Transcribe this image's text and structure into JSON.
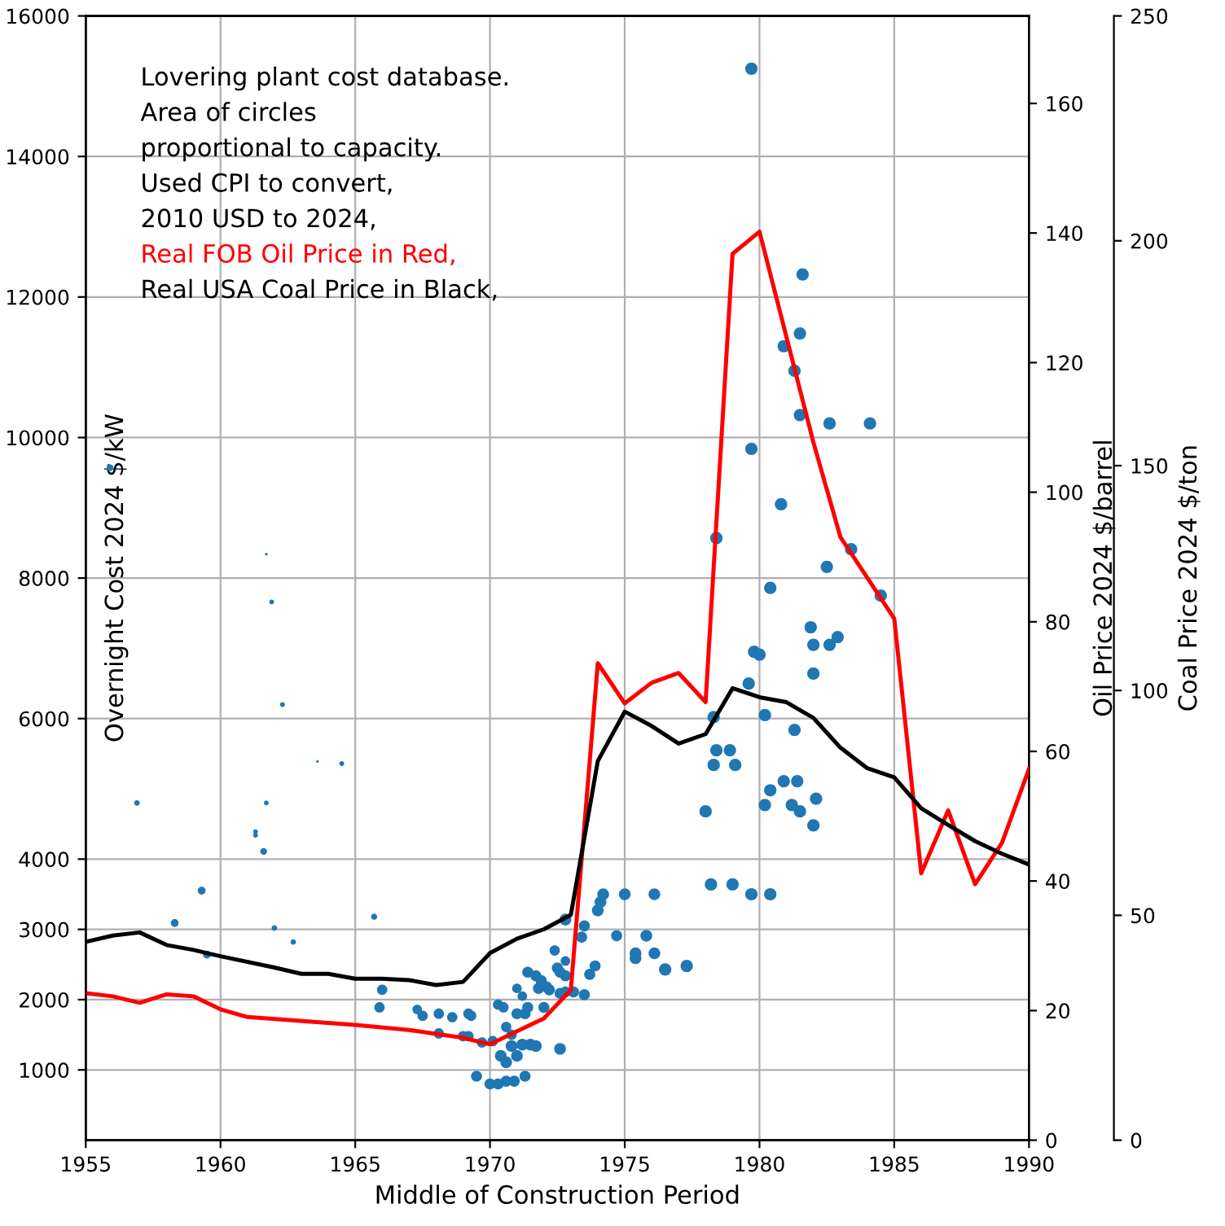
{
  "chart_data": {
    "type": "bubble",
    "relative": false,
    "xlabel": "Middle of Construction Period",
    "ylabel": "Overnight Cost 2024 $/kW",
    "y2label": "Oil Price 2024 $/barrel",
    "y3label": "Coal Price 2024 $/ton",
    "annotations": [
      "Lovering plant cost database.",
      "Area of circles",
      "proportional to capacity.",
      "Used CPI to convert,",
      "2010 USD to 2024,",
      "Real FOB Oil Price in Red,",
      "Real USA Coal Price in Black,"
    ],
    "xlim": [
      1955,
      1990
    ],
    "xticks": [
      1955,
      1960,
      1965,
      1970,
      1975,
      1980,
      1985,
      1990
    ],
    "ylim": [
      0,
      16000
    ],
    "yticks": [
      1000,
      2000,
      3000,
      4000,
      6000,
      8000,
      10000,
      12000,
      14000,
      16000
    ],
    "y2lim": [
      0,
      173.5
    ],
    "y2ticks": [
      0,
      20,
      40,
      60,
      80,
      100,
      120,
      140,
      160
    ],
    "y3lim": [
      0,
      250
    ],
    "y3ticks": [
      0,
      50,
      100,
      150,
      200,
      250
    ],
    "grid": true,
    "series": [
      {
        "color": "#1f77b4",
        "x": [
          1955.9,
          1956.9,
          1958.3,
          1959.3,
          1959.5,
          1961.7,
          1961.9,
          1962.3,
          1961.3,
          1961.3,
          1961.6,
          1961.7,
          1962.0,
          1962.7,
          1963.6,
          1964.5,
          1965.7,
          1966.0,
          1965.9,
          1967.3,
          1967.5,
          1968.1,
          1968.6,
          1969.2,
          1969.3,
          1968.1,
          1969.0,
          1969.2,
          1969.5,
          1969.7,
          1970.1,
          1970.0,
          1970.3,
          1970.6,
          1970.9,
          1971.3,
          1970.3,
          1970.5,
          1970.6,
          1970.8,
          1971.0,
          1971.3,
          1971.4,
          1971.2,
          1971.0,
          1971.4,
          1971.7,
          1971.9,
          1971.8,
          1972.1,
          1972.2,
          1972.0,
          1972.4,
          1972.5,
          1972.6,
          1972.8,
          1972.8,
          1972.6,
          1972.8,
          1973.1,
          1972.6,
          1970.4,
          1970.6,
          1971.0,
          1971.2,
          1971.5,
          1971.7,
          1970.8,
          1972.8,
          1973.5,
          1973.4,
          1973.5,
          1973.7,
          1973.9,
          1974.0,
          1974.1,
          1974.2,
          1974.7,
          1975.0,
          1975.4,
          1975.4,
          1975.8,
          1976.1,
          1976.1,
          1976.5,
          1977.3,
          1978.0,
          1978.2,
          1979.0,
          1979.7,
          1980.4,
          1980.2,
          1979.8,
          1980.0,
          1982.0,
          1982.6,
          1982.0,
          1979.6,
          1978.3,
          1980.2,
          1981.3,
          1978.4,
          1978.9,
          1978.3,
          1979.1,
          1980.4,
          1980.9,
          1981.4,
          1982.1,
          1981.2,
          1981.5,
          1982.0,
          1979.7,
          1981.6,
          1981.5,
          1980.9,
          1981.3,
          1981.5,
          1982.6,
          1984.1,
          1979.7,
          1980.8,
          1978.4,
          1983.4,
          1982.5,
          1980.4,
          1984.5,
          1981.9,
          1982.9
        ],
        "values": [
          9570,
          4800,
          3090,
          3550,
          2640,
          8340,
          7660,
          6200,
          4390,
          4340,
          4110,
          4800,
          3020,
          2820,
          5390,
          5360,
          3180,
          2140,
          1890,
          1860,
          1770,
          1800,
          1750,
          1800,
          1770,
          1520,
          1480,
          1480,
          910,
          1390,
          1410,
          800,
          800,
          840,
          840,
          910,
          1930,
          1890,
          1610,
          1500,
          1800,
          1800,
          1890,
          2050,
          2160,
          2390,
          2340,
          2270,
          2160,
          2180,
          2140,
          1890,
          2700,
          2450,
          2390,
          2550,
          2340,
          2090,
          2110,
          2110,
          1300,
          1200,
          1110,
          1200,
          1360,
          1360,
          1340,
          1340,
          3140,
          3050,
          2890,
          2070,
          2360,
          2480,
          3270,
          3390,
          3500,
          2910,
          3500,
          2590,
          2660,
          2910,
          3500,
          2660,
          2430,
          2480,
          4680,
          3640,
          3640,
          3500,
          3500,
          4770,
          6950,
          6910,
          7050,
          7050,
          6640,
          6500,
          6020,
          6050,
          5840,
          5550,
          5550,
          5340,
          5340,
          4980,
          5110,
          5110,
          4860,
          4770,
          4680,
          4480,
          15250,
          12320,
          11480,
          11300,
          10950,
          10320,
          10200,
          10200,
          9840,
          9050,
          8570,
          8410,
          8160,
          7860,
          7750,
          7300,
          7160
        ],
        "sizes": [
          0.3,
          0.2,
          0.4,
          0.4,
          0.4,
          0.05,
          0.15,
          0.15,
          0.15,
          0.15,
          0.3,
          0.15,
          0.2,
          0.2,
          0.05,
          0.15,
          0.25,
          0.7,
          0.7,
          0.6,
          0.7,
          0.7,
          0.7,
          0.7,
          0.7,
          0.7,
          0.7,
          0.7,
          0.8,
          0.7,
          0.7,
          0.8,
          0.8,
          0.8,
          0.8,
          0.8,
          0.7,
          0.7,
          0.7,
          0.7,
          0.8,
          0.8,
          0.8,
          0.6,
          0.6,
          0.8,
          0.8,
          0.8,
          0.8,
          0.8,
          0.8,
          0.8,
          0.7,
          0.8,
          0.8,
          0.6,
          0.8,
          0.8,
          0.8,
          0.8,
          0.9,
          0.9,
          0.9,
          0.9,
          0.9,
          0.9,
          0.9,
          0.9,
          0.9,
          0.8,
          0.8,
          0.8,
          0.8,
          0.8,
          0.9,
          0.9,
          0.9,
          0.8,
          0.9,
          0.9,
          0.9,
          0.9,
          0.9,
          0.9,
          1,
          1,
          1,
          1,
          1,
          1,
          1,
          1,
          1,
          1,
          1,
          1,
          1,
          1,
          1,
          1,
          1,
          1,
          1,
          1,
          1,
          1,
          1,
          1,
          1,
          1,
          1,
          1,
          1,
          1,
          1,
          1,
          1,
          1,
          1,
          1,
          1,
          1,
          1,
          1,
          1,
          1,
          1,
          1,
          1
        ]
      },
      {
        "type": "line",
        "axis": "y2",
        "color": "#ff0000",
        "x": [
          1955,
          1956,
          1957,
          1958,
          1959,
          1960,
          1961,
          1965,
          1967,
          1969,
          1970,
          1971,
          1972,
          1973,
          1974,
          1975,
          1976,
          1977,
          1978,
          1979,
          1980,
          1982,
          1983,
          1985,
          1986,
          1987,
          1988,
          1989,
          1990
        ],
        "values": [
          22.7,
          22.2,
          21.2,
          22.5,
          22.2,
          20.2,
          19.0,
          17.8,
          17.0,
          15.8,
          14.8,
          16.8,
          18.8,
          23.2,
          73.6,
          67.4,
          70.6,
          72.1,
          67.6,
          136.8,
          140.2,
          107.7,
          93.1,
          80.5,
          41.2,
          50.9,
          39.5,
          45.9,
          57.3
        ]
      },
      {
        "type": "line",
        "axis": "y3",
        "color": "#000000",
        "x": [
          1955,
          1956,
          1957,
          1958,
          1959,
          1960,
          1962,
          1963,
          1964,
          1965,
          1966,
          1967,
          1968,
          1969,
          1970,
          1971,
          1972,
          1973,
          1974,
          1975,
          1976,
          1977,
          1978,
          1979,
          1980,
          1981,
          1982,
          1983,
          1984,
          1985,
          1986,
          1987,
          1988,
          1989,
          1990
        ],
        "values": [
          44.1,
          45.5,
          46.2,
          43.4,
          42.3,
          40.9,
          38.4,
          37.0,
          37.0,
          35.9,
          35.9,
          35.6,
          34.5,
          35.2,
          41.6,
          44.8,
          46.9,
          50.1,
          84.3,
          95.3,
          92.1,
          88.2,
          90.3,
          100.5,
          98.5,
          97.4,
          93.9,
          87.3,
          82.7,
          80.7,
          73.8,
          70.1,
          66.5,
          63.7,
          61.3
        ]
      }
    ]
  }
}
